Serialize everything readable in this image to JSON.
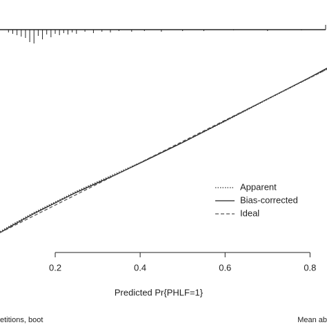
{
  "chart_data": {
    "type": "line",
    "xlabel": "Predicted Pr{PHLF=1}",
    "footer_left": "etitions, boot",
    "footer_right": "Mean ab",
    "xlim": [
      0.07,
      0.84
    ],
    "ylim": [
      -0.02,
      1.02
    ],
    "xticks": [
      0.2,
      0.4,
      0.6,
      0.8
    ],
    "x": [
      0.07,
      0.1,
      0.15,
      0.2,
      0.25,
      0.3,
      0.35,
      0.4,
      0.5,
      0.6,
      0.7,
      0.8,
      0.84
    ],
    "series": [
      {
        "name": "Apparent",
        "color": "#333333",
        "dash": "dotted",
        "values": [
          0.075,
          0.11,
          0.165,
          0.215,
          0.265,
          0.31,
          0.355,
          0.4,
          0.495,
          0.595,
          0.698,
          0.8,
          0.84
        ]
      },
      {
        "name": "Bias-corrected",
        "color": "#222222",
        "dash": "solid",
        "values": [
          0.07,
          0.105,
          0.16,
          0.21,
          0.26,
          0.305,
          0.35,
          0.398,
          0.495,
          0.597,
          0.7,
          0.802,
          0.845
        ]
      },
      {
        "name": "Ideal",
        "color": "#555555",
        "dash": "dashed",
        "values": [
          0.07,
          0.1,
          0.15,
          0.2,
          0.25,
          0.3,
          0.35,
          0.4,
          0.5,
          0.6,
          0.7,
          0.8,
          0.84
        ]
      }
    ],
    "rug": {
      "x": [
        0.09,
        0.1,
        0.11,
        0.12,
        0.13,
        0.14,
        0.15,
        0.16,
        0.17,
        0.18,
        0.19,
        0.2,
        0.21,
        0.22,
        0.23,
        0.24,
        0.25,
        0.27,
        0.29,
        0.31,
        0.33,
        0.35,
        0.38,
        0.41,
        0.45,
        0.5,
        0.55,
        0.62,
        0.7,
        0.78
      ],
      "counts": [
        4,
        6,
        8,
        10,
        12,
        18,
        20,
        9,
        14,
        7,
        11,
        6,
        8,
        5,
        7,
        4,
        6,
        3,
        5,
        3,
        4,
        2,
        3,
        2,
        3,
        2,
        2,
        1,
        2,
        1
      ]
    }
  }
}
